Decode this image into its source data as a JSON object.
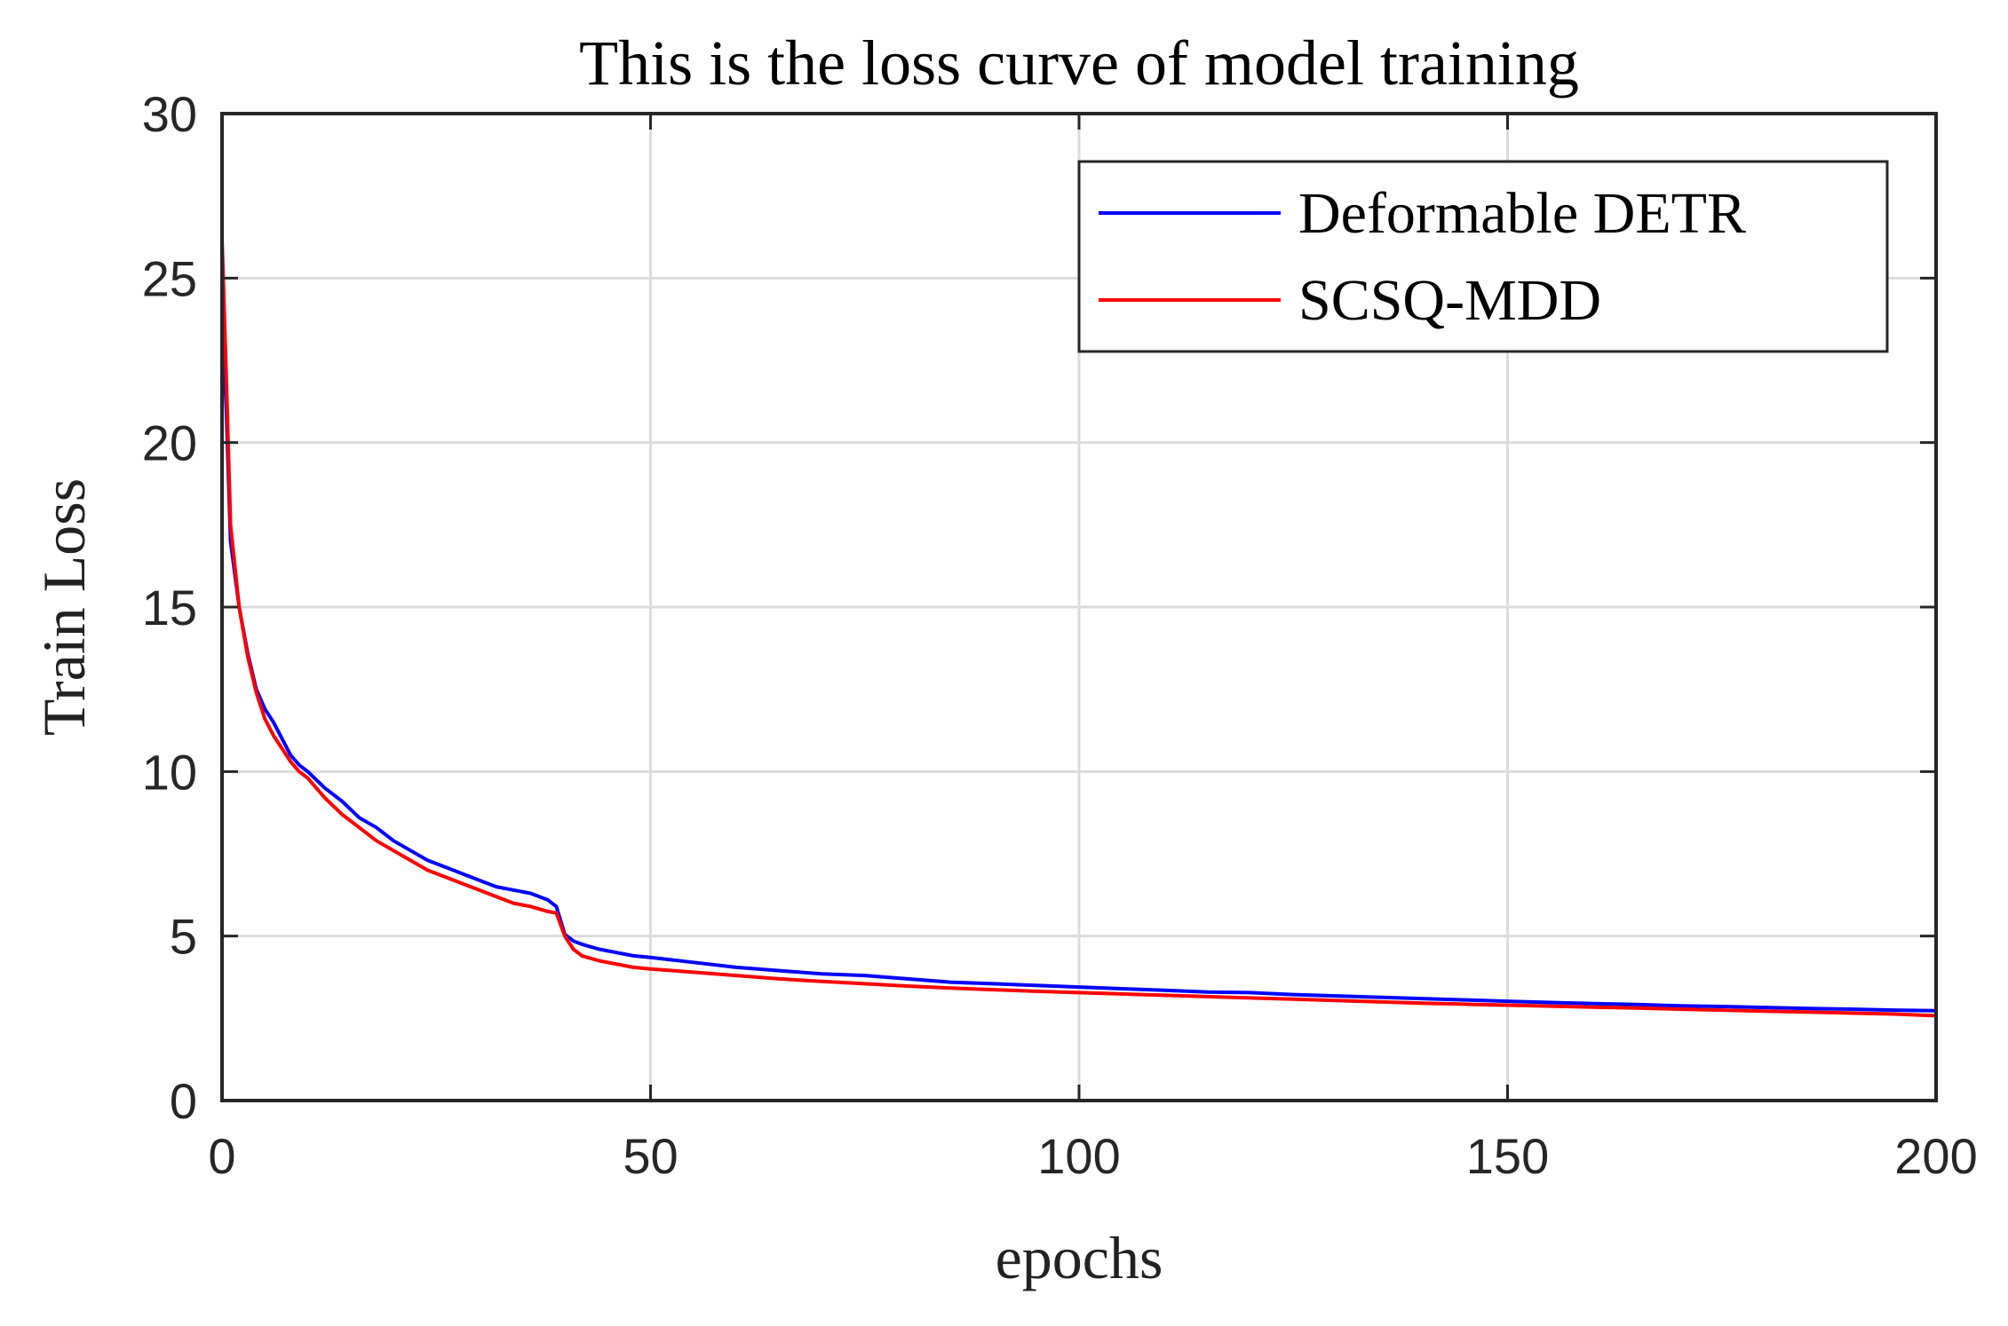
{
  "chart_data": {
    "type": "line",
    "title": "This is the loss curve of model training",
    "xlabel": "epochs",
    "ylabel": "Train Loss",
    "xlim": [
      0,
      200
    ],
    "ylim": [
      0,
      30
    ],
    "xticks": [
      0,
      50,
      100,
      150,
      200
    ],
    "yticks": [
      0,
      5,
      10,
      15,
      20,
      25,
      30
    ],
    "grid": true,
    "legend_position": "top-right",
    "series": [
      {
        "name": "Deformable DETR",
        "color": "#0000ff",
        "x": [
          0,
          0.5,
          1,
          2,
          3,
          4,
          5,
          6,
          7,
          8,
          9,
          10,
          12,
          14,
          16,
          18,
          20,
          22,
          24,
          26,
          28,
          30,
          32,
          34,
          36,
          38,
          39,
          40,
          41,
          42,
          44,
          46,
          48,
          50,
          55,
          60,
          65,
          70,
          75,
          80,
          85,
          90,
          95,
          100,
          105,
          110,
          115,
          120,
          125,
          130,
          135,
          140,
          145,
          150,
          155,
          160,
          165,
          170,
          175,
          180,
          185,
          190,
          195,
          200
        ],
        "values": [
          24.0,
          21.0,
          17.0,
          15.0,
          13.6,
          12.5,
          11.9,
          11.5,
          11.0,
          10.5,
          10.2,
          10.0,
          9.5,
          9.1,
          8.6,
          8.3,
          7.9,
          7.6,
          7.3,
          7.1,
          6.9,
          6.7,
          6.5,
          6.4,
          6.3,
          6.1,
          5.9,
          5.05,
          4.85,
          4.75,
          4.6,
          4.5,
          4.4,
          4.35,
          4.2,
          4.05,
          3.95,
          3.85,
          3.8,
          3.7,
          3.6,
          3.55,
          3.5,
          3.45,
          3.4,
          3.35,
          3.3,
          3.28,
          3.22,
          3.18,
          3.14,
          3.1,
          3.06,
          3.02,
          2.98,
          2.95,
          2.92,
          2.88,
          2.86,
          2.83,
          2.8,
          2.78,
          2.75,
          2.73
        ]
      },
      {
        "name": "SCSQ-MDD",
        "color": "#ff0000",
        "x": [
          0,
          0.5,
          1,
          2,
          3,
          4,
          5,
          6,
          7,
          8,
          9,
          10,
          12,
          14,
          16,
          18,
          20,
          22,
          24,
          26,
          28,
          30,
          32,
          34,
          36,
          38,
          39,
          40,
          41,
          42,
          44,
          46,
          48,
          50,
          55,
          60,
          65,
          70,
          75,
          80,
          85,
          90,
          95,
          100,
          105,
          110,
          115,
          120,
          125,
          130,
          135,
          140,
          145,
          150,
          155,
          160,
          165,
          170,
          175,
          180,
          185,
          190,
          195,
          200
        ],
        "values": [
          26.2,
          22.0,
          17.5,
          15.0,
          13.5,
          12.4,
          11.6,
          11.1,
          10.7,
          10.3,
          10.0,
          9.8,
          9.2,
          8.7,
          8.3,
          7.9,
          7.6,
          7.3,
          7.0,
          6.8,
          6.6,
          6.4,
          6.2,
          6.0,
          5.9,
          5.75,
          5.7,
          5.0,
          4.6,
          4.4,
          4.25,
          4.15,
          4.05,
          4.0,
          3.9,
          3.8,
          3.7,
          3.62,
          3.55,
          3.48,
          3.42,
          3.37,
          3.32,
          3.28,
          3.24,
          3.2,
          3.16,
          3.12,
          3.08,
          3.04,
          3.0,
          2.96,
          2.93,
          2.9,
          2.87,
          2.84,
          2.81,
          2.78,
          2.75,
          2.72,
          2.69,
          2.66,
          2.63,
          2.58
        ]
      }
    ]
  }
}
